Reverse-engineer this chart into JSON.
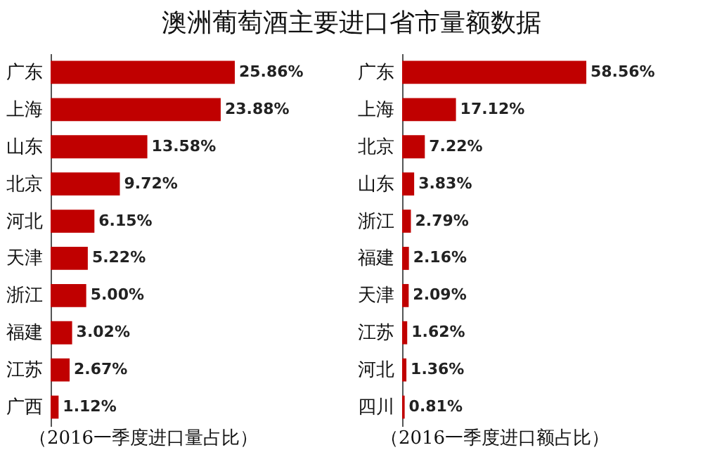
{
  "chart_data": [
    {
      "type": "bar",
      "orientation": "horizontal",
      "title": "澳洲葡萄酒主要进口省市量额数据",
      "xlabel": "（2016一季度进口量占比）",
      "tick_labels": "y",
      "categories": [
        "广东",
        "上海",
        "山东",
        "北京",
        "河北",
        "天津",
        "浙江",
        "福建",
        "江苏",
        "广西"
      ],
      "values": [
        25.86,
        23.88,
        13.58,
        9.72,
        6.15,
        5.22,
        5.0,
        3.02,
        2.67,
        1.12
      ],
      "value_labels": [
        "25.86%",
        "23.88%",
        "13.58%",
        "9.72%",
        "6.15%",
        "5.22%",
        "5.00%",
        "3.02%",
        "2.67%",
        "1.12%"
      ],
      "color": "#c00000"
    },
    {
      "type": "bar",
      "orientation": "horizontal",
      "xlabel": "（2016一季度进口额占比）",
      "tick_labels": "y",
      "categories": [
        "广东",
        "上海",
        "北京",
        "山东",
        "浙江",
        "福建",
        "天津",
        "江苏",
        "河北",
        "四川"
      ],
      "values": [
        58.56,
        17.12,
        7.22,
        3.83,
        2.79,
        2.16,
        2.09,
        1.62,
        1.36,
        0.81
      ],
      "value_labels": [
        "58.56%",
        "17.12%",
        "7.22%",
        "3.83%",
        "2.79%",
        "2.16%",
        "2.09%",
        "1.62%",
        "1.36%",
        "0.81%"
      ],
      "color": "#c00000"
    }
  ]
}
